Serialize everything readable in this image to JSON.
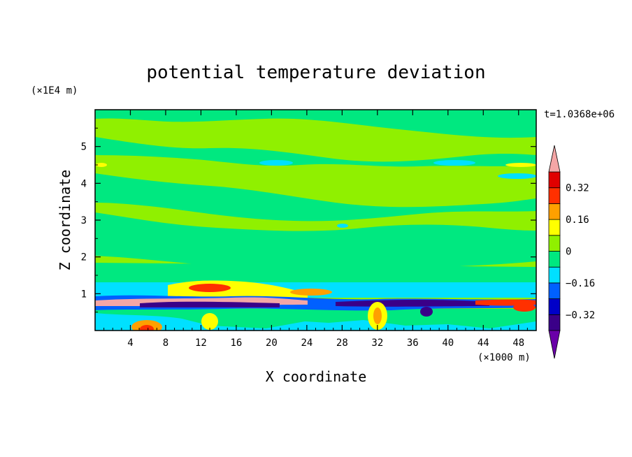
{
  "chart_data": {
    "type": "heatmap",
    "title": "potential temperature deviation",
    "xlabel": "X coordinate",
    "ylabel": "Z coordinate",
    "x_unit": "(×1000 m)",
    "y_unit": "(×1E4 m)",
    "time_label": "t=1.0368e+06",
    "xlim": [
      0,
      50
    ],
    "ylim": [
      0,
      6
    ],
    "x_ticks": [
      4,
      8,
      12,
      16,
      20,
      24,
      28,
      32,
      36,
      40,
      44,
      48
    ],
    "y_ticks": [
      1,
      2,
      3,
      4,
      5
    ],
    "colorbar": {
      "labels": [
        "0.32",
        "0.16",
        "0",
        "−0.16",
        "−0.32"
      ],
      "label_values": [
        0.32,
        0.16,
        0,
        -0.16,
        -0.32
      ],
      "levels": [
        -0.4,
        -0.32,
        -0.24,
        -0.16,
        -0.08,
        0,
        0.08,
        0.16,
        0.24,
        0.32,
        0.4
      ],
      "colors": [
        "#6a00a8",
        "#3a0088",
        "#0000c8",
        "#0060ff",
        "#00e0ff",
        "#00e880",
        "#90f000",
        "#ffff00",
        "#ffa000",
        "#ff3000",
        "#e00000",
        "#f4a6a6"
      ]
    }
  }
}
